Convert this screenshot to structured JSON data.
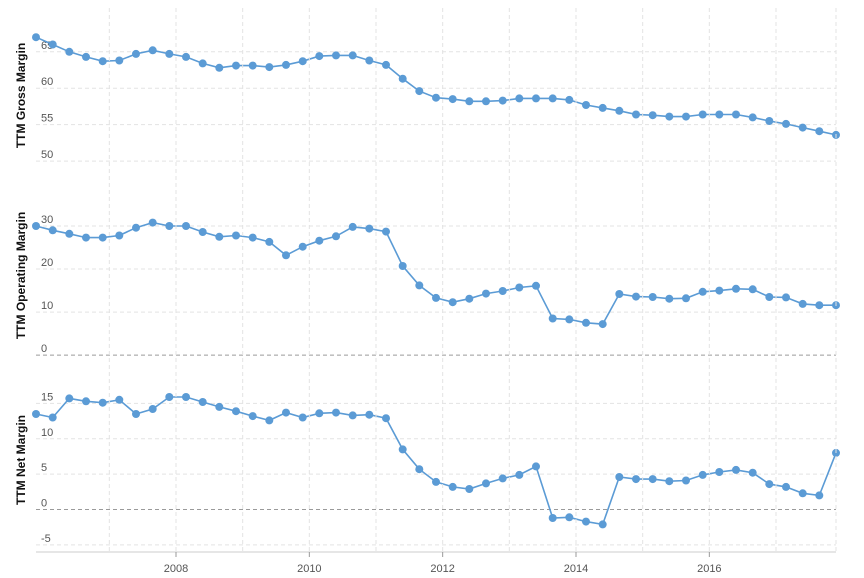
{
  "chart_data": [
    {
      "type": "line",
      "ylabel": "TTM Gross Margin",
      "ylim": [
        47,
        71
      ],
      "yticks": [
        50,
        55,
        60,
        65
      ],
      "ytick_labels": [
        "50",
        "55",
        "60",
        "65"
      ],
      "grid": true,
      "color": "#5b9bd5",
      "x": [
        2005.9,
        2006.15,
        2006.4,
        2006.65,
        2006.9,
        2007.15,
        2007.4,
        2007.65,
        2007.9,
        2008.15,
        2008.4,
        2008.65,
        2008.9,
        2009.15,
        2009.4,
        2009.65,
        2009.9,
        2010.15,
        2010.4,
        2010.65,
        2010.9,
        2011.15,
        2011.4,
        2011.65,
        2011.9,
        2012.15,
        2012.4,
        2012.65,
        2012.9,
        2013.15,
        2013.4,
        2013.65,
        2013.9,
        2014.15,
        2014.4,
        2014.65,
        2014.9,
        2015.15,
        2015.4,
        2015.65,
        2015.9,
        2016.15,
        2016.4,
        2016.65,
        2016.9,
        2017.15,
        2017.4,
        2017.65,
        2017.9
      ],
      "values": [
        67.0,
        66.0,
        65.0,
        64.3,
        63.7,
        63.8,
        64.7,
        65.2,
        64.7,
        64.3,
        63.4,
        62.8,
        63.1,
        63.1,
        62.9,
        63.2,
        63.7,
        64.4,
        64.5,
        64.5,
        63.8,
        63.2,
        61.3,
        59.6,
        58.7,
        58.5,
        58.2,
        58.2,
        58.3,
        58.6,
        58.6,
        58.6,
        58.4,
        57.7,
        57.3,
        56.9,
        56.4,
        56.3,
        56.1,
        56.1,
        56.4,
        56.4,
        56.4,
        56.0,
        55.5,
        55.1,
        54.6,
        54.1,
        53.6
      ]
    },
    {
      "type": "line",
      "ylabel": "TTM Operating Margin",
      "ylim": [
        -3,
        40
      ],
      "yticks": [
        0,
        10,
        20,
        30
      ],
      "ytick_labels": [
        "0",
        "10",
        "20",
        "30"
      ],
      "grid": true,
      "color": "#5b9bd5",
      "x": [
        2005.9,
        2006.15,
        2006.4,
        2006.65,
        2006.9,
        2007.15,
        2007.4,
        2007.65,
        2007.9,
        2008.15,
        2008.4,
        2008.65,
        2008.9,
        2009.15,
        2009.4,
        2009.65,
        2009.9,
        2010.15,
        2010.4,
        2010.65,
        2010.9,
        2011.15,
        2011.4,
        2011.65,
        2011.9,
        2012.15,
        2012.4,
        2012.65,
        2012.9,
        2013.15,
        2013.4,
        2013.65,
        2013.9,
        2014.15,
        2014.4,
        2014.65,
        2014.9,
        2015.15,
        2015.4,
        2015.65,
        2015.9,
        2016.15,
        2016.4,
        2016.65,
        2016.9,
        2017.15,
        2017.4,
        2017.65,
        2017.9
      ],
      "values": [
        30.0,
        29.0,
        28.2,
        27.3,
        27.3,
        27.8,
        29.6,
        30.8,
        30.0,
        30.0,
        28.6,
        27.5,
        27.8,
        27.3,
        26.3,
        23.2,
        25.2,
        26.6,
        27.6,
        29.8,
        29.4,
        28.7,
        20.7,
        16.2,
        13.3,
        12.3,
        13.1,
        14.3,
        14.9,
        15.7,
        16.1,
        8.5,
        8.3,
        7.5,
        7.2,
        14.2,
        13.6,
        13.5,
        13.1,
        13.2,
        14.7,
        15.0,
        15.4,
        15.3,
        13.5,
        13.4,
        11.9,
        11.6,
        11.6
      ]
    },
    {
      "type": "line",
      "ylabel": "TTM Net Margin",
      "ylim": [
        -6,
        20
      ],
      "yticks": [
        -5,
        0,
        5,
        10,
        15
      ],
      "ytick_labels": [
        "-5",
        "0",
        "5",
        "10",
        "15"
      ],
      "grid": true,
      "color": "#5b9bd5",
      "x": [
        2005.9,
        2006.15,
        2006.4,
        2006.65,
        2006.9,
        2007.15,
        2007.4,
        2007.65,
        2007.9,
        2008.15,
        2008.4,
        2008.65,
        2008.9,
        2009.15,
        2009.4,
        2009.65,
        2009.9,
        2010.15,
        2010.4,
        2010.65,
        2010.9,
        2011.15,
        2011.4,
        2011.65,
        2011.9,
        2012.15,
        2012.4,
        2012.65,
        2012.9,
        2013.15,
        2013.4,
        2013.65,
        2013.9,
        2014.15,
        2014.4,
        2014.65,
        2014.9,
        2015.15,
        2015.4,
        2015.65,
        2015.9,
        2016.15,
        2016.4,
        2016.65,
        2016.9,
        2017.15,
        2017.4,
        2017.65,
        2017.9
      ],
      "values": [
        13.5,
        13.0,
        15.7,
        15.3,
        15.1,
        15.5,
        13.5,
        14.2,
        15.9,
        15.9,
        15.2,
        14.5,
        13.9,
        13.2,
        12.6,
        13.7,
        13.0,
        13.6,
        13.7,
        13.3,
        13.4,
        12.9,
        8.5,
        5.7,
        3.9,
        3.2,
        2.9,
        3.7,
        4.4,
        4.9,
        6.1,
        -1.2,
        -1.1,
        -1.7,
        -2.1,
        4.6,
        4.3,
        4.3,
        4.0,
        4.1,
        4.9,
        5.3,
        5.6,
        5.2,
        3.6,
        3.2,
        2.3,
        2.0,
        8.0
      ]
    }
  ],
  "x_axis": {
    "range": [
      2005.9,
      2017.9
    ],
    "ticks": [
      2008,
      2010,
      2012,
      2014,
      2016
    ],
    "tick_labels": [
      "2008",
      "2010",
      "2012",
      "2014",
      "2016"
    ],
    "minor_ticks": [
      2007,
      2009,
      2011,
      2013,
      2015,
      2017
    ]
  }
}
